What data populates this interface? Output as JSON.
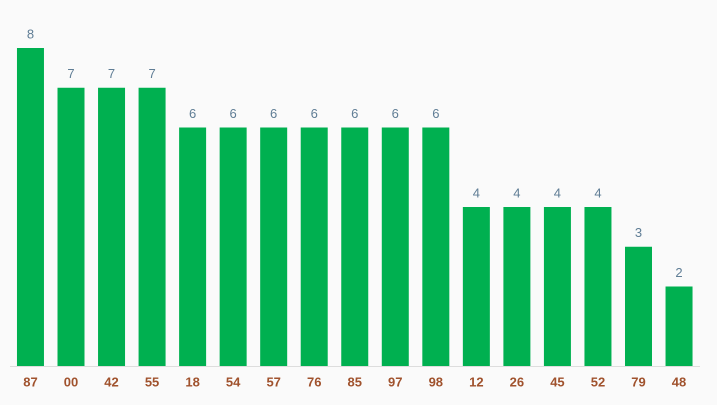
{
  "chart_data": {
    "type": "bar",
    "categories": [
      "87",
      "00",
      "42",
      "55",
      "18",
      "54",
      "57",
      "76",
      "85",
      "97",
      "98",
      "12",
      "26",
      "45",
      "52",
      "79",
      "48"
    ],
    "values": [
      8,
      7,
      7,
      7,
      6,
      6,
      6,
      6,
      6,
      6,
      6,
      4,
      4,
      4,
      4,
      3,
      2
    ],
    "color": "#00b050",
    "ylim": [
      0,
      8
    ]
  }
}
